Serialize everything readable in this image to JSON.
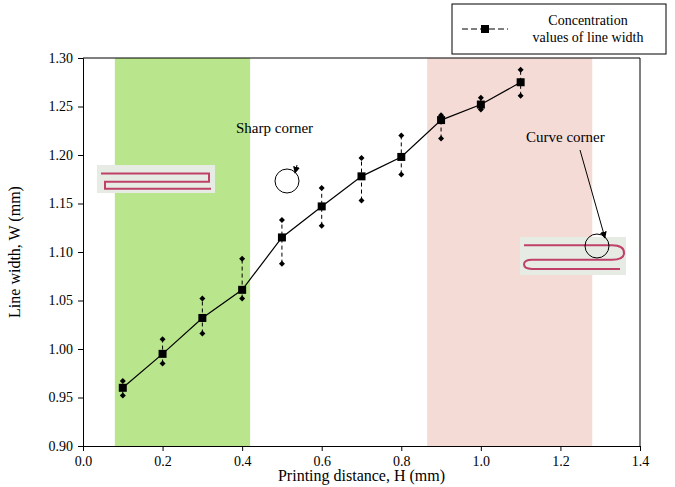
{
  "chart_data": {
    "type": "line",
    "xlabel": "Printing distance, H (mm)",
    "ylabel": "Line width, W (mm)",
    "x": [
      0.1,
      0.2,
      0.3,
      0.4,
      0.5,
      0.6,
      0.7,
      0.8,
      0.9,
      1.0,
      1.1
    ],
    "series": [
      {
        "name": "Concentration values of line width",
        "color": "#000000",
        "marker": "square",
        "line_style": "solid",
        "values": [
          0.96,
          0.995,
          1.032,
          1.061,
          1.115,
          1.147,
          1.178,
          1.198,
          1.236,
          1.252,
          1.275
        ],
        "lower": [
          0.952,
          0.985,
          1.016,
          1.052,
          1.088,
          1.127,
          1.153,
          1.18,
          1.217,
          1.247,
          1.261
        ],
        "upper": [
          0.967,
          1.01,
          1.052,
          1.093,
          1.133,
          1.166,
          1.197,
          1.22,
          1.241,
          1.259,
          1.288
        ]
      }
    ],
    "xlim": [
      0,
      1.4
    ],
    "xticks": [
      {
        "value": 0,
        "label": "0.0"
      },
      0.2,
      0.4,
      0.6,
      0.8,
      {
        "value": 1,
        "label": "1.0"
      },
      1.2,
      1.4
    ],
    "ylim": [
      0.9,
      1.3
    ],
    "yticks": [
      {
        "value": 0.9,
        "label": "0.90"
      },
      0.95,
      {
        "value": 1,
        "label": "1.00"
      },
      1.05,
      {
        "value": 1.1,
        "label": "1.10"
      },
      1.15,
      {
        "value": 1.2,
        "label": "1.20"
      },
      1.25,
      {
        "value": 1.3,
        "label": "1.30"
      }
    ],
    "legend": "upper right",
    "regions": [
      {
        "x": [
          0.08,
          0.42
        ],
        "color": "#b9e68c"
      },
      {
        "x": [
          0.865,
          1.28
        ],
        "color": "#f5dbd6"
      }
    ],
    "annotations": [
      {
        "text": "Sharp corner"
      },
      {
        "text": "Curve corner"
      }
    ]
  }
}
